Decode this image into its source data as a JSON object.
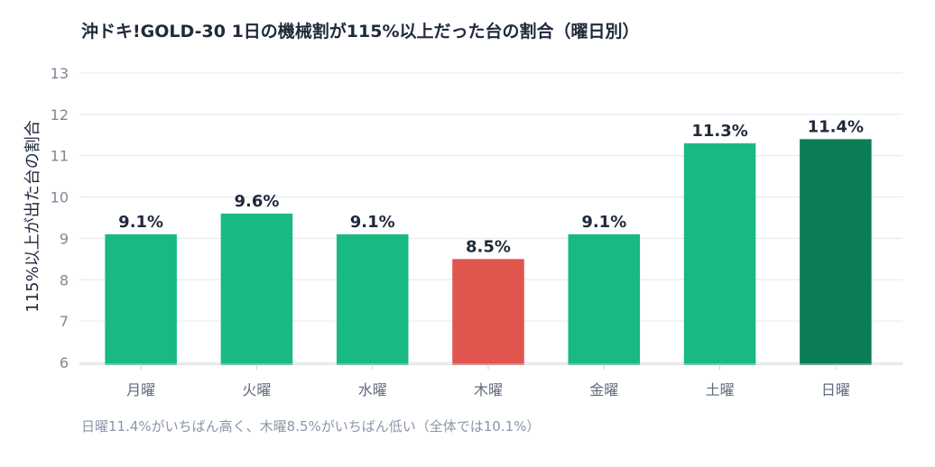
{
  "chart_data": {
    "type": "bar",
    "title": "沖ドキ!GOLD-30 1日の機械割が115%以上だった台の割合（曜日別）",
    "xlabel": "",
    "ylabel": "115%以上が出た台の割合",
    "categories": [
      "月曜",
      "火曜",
      "水曜",
      "木曜",
      "金曜",
      "土曜",
      "日曜"
    ],
    "values": [
      9.1,
      9.6,
      9.1,
      8.5,
      9.1,
      11.3,
      11.4
    ],
    "value_labels": [
      "9.1%",
      "9.6%",
      "9.1%",
      "8.5%",
      "9.1%",
      "11.3%",
      "11.4%"
    ],
    "bar_colors": [
      "#19b983",
      "#19b983",
      "#19b983",
      "#e0554e",
      "#19b983",
      "#19b983",
      "#0b7d56"
    ],
    "ylim": [
      6,
      13
    ],
    "yticks": [
      6,
      7,
      8,
      9,
      10,
      11,
      12,
      13
    ],
    "grid": true,
    "legend": "none",
    "footnote": "日曜11.4%がいちばん高く、木曜8.5%がいちばん低い（全体では10.1%）"
  }
}
